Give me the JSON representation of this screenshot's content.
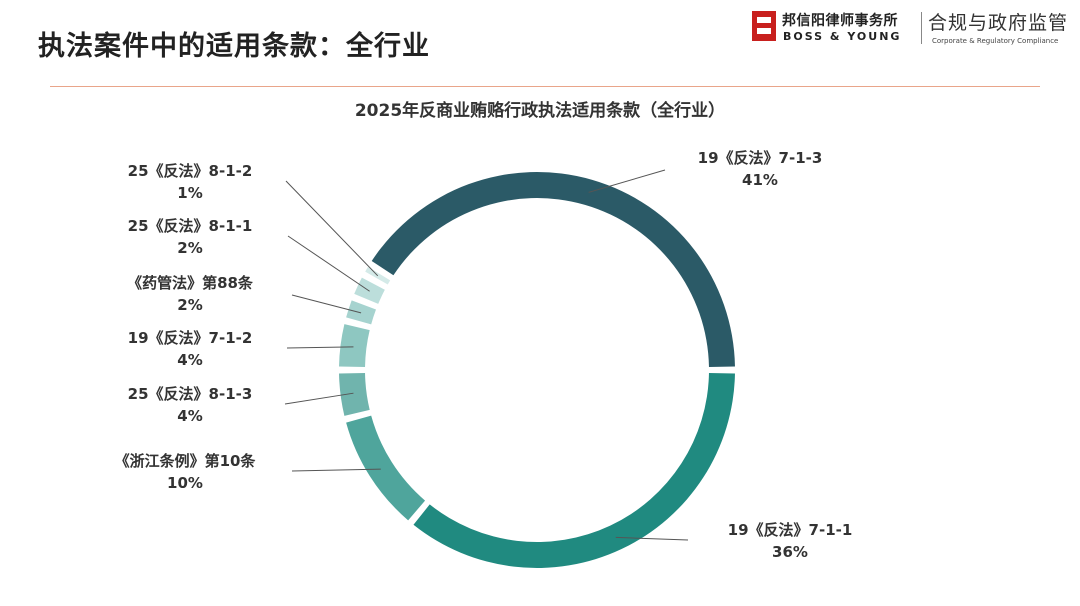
{
  "header": {
    "title": "执法案件中的适用条款：全行业",
    "logo_cn": "邦信阳律师事务所",
    "logo_en": "BOSS & YOUNG",
    "brand_cn": "合规与政府监管",
    "brand_en": "Corporate & Regulatory Compliance"
  },
  "chart_data": {
    "type": "pie",
    "style": "donut",
    "title": "2025年反商业贿赂行政执法适用条款（全行业）",
    "slices": [
      {
        "name": "19《反法》7-1-3",
        "value": 41,
        "pct_label": "41%",
        "color": "#2b5a67"
      },
      {
        "name": "19《反法》7-1-1",
        "value": 36,
        "pct_label": "36%",
        "color": "#208a80"
      },
      {
        "name": "《浙江条例》第10条",
        "value": 10,
        "pct_label": "10%",
        "color": "#4fa59c"
      },
      {
        "name": "25《反法》8-1-3",
        "value": 4,
        "pct_label": "4%",
        "color": "#70b4ad"
      },
      {
        "name": "19《反法》7-1-2",
        "value": 4,
        "pct_label": "4%",
        "color": "#8ec7c1"
      },
      {
        "name": "《药管法》第88条",
        "value": 2,
        "pct_label": "2%",
        "color": "#a6d3cf"
      },
      {
        "name": "25《反法》8-1-1",
        "value": 2,
        "pct_label": "2%",
        "color": "#bcdedb"
      },
      {
        "name": "25《反法》8-1-2",
        "value": 1,
        "pct_label": "1%",
        "color": "#d4eae8"
      }
    ]
  }
}
